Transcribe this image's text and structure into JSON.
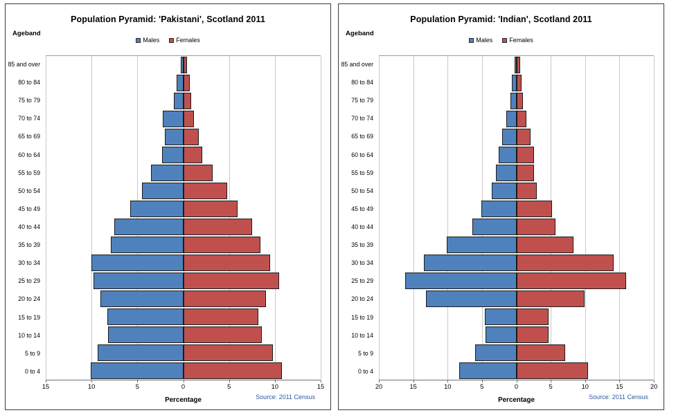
{
  "chart_data": [
    {
      "type": "bar",
      "variant": "population-pyramid",
      "title": "Population Pyramid: 'Pakistani', Scotland 2011",
      "ageband_label": "Ageband",
      "xlabel": "Percentage",
      "source": "Source: 2011 Census",
      "grid": true,
      "legend_position": "top",
      "axis_max": 15,
      "x_ticks": [
        "15",
        "10",
        "5",
        "0",
        "5",
        "10",
        "15"
      ],
      "categories_top_to_bottom": [
        "85 and over",
        "80 to 84",
        "75 to 79",
        "70 to 74",
        "65 to 69",
        "60 to 64",
        "55 to 59",
        "50 to 54",
        "45 to 49",
        "40 to 44",
        "35 to 39",
        "30 to 34",
        "25 to 29",
        "20 to 24",
        "15 to 19",
        "10 to 14",
        "5 to 9",
        "0 to 4"
      ],
      "series": [
        {
          "name": "Males",
          "color": "#4f81bd",
          "side": "left",
          "values": [
            0.3,
            0.7,
            1.0,
            2.2,
            2.0,
            2.3,
            3.5,
            4.5,
            5.8,
            7.5,
            7.9,
            10.0,
            9.8,
            9.0,
            8.3,
            8.2,
            9.3,
            10.1
          ]
        },
        {
          "name": "Females",
          "color": "#c0504d",
          "side": "right",
          "values": [
            0.4,
            0.7,
            0.9,
            1.2,
            1.7,
            2.1,
            3.2,
            4.8,
            5.9,
            7.5,
            8.4,
            9.5,
            10.5,
            9.0,
            8.2,
            8.6,
            9.8,
            10.8
          ]
        }
      ]
    },
    {
      "type": "bar",
      "variant": "population-pyramid",
      "title": "Population Pyramid: 'Indian', Scotland 2011",
      "ageband_label": "Ageband",
      "xlabel": "Percentage",
      "source": "Source: 2011 Census",
      "grid": true,
      "legend_position": "top",
      "axis_max": 20,
      "x_ticks": [
        "20",
        "15",
        "10",
        "5",
        "0",
        "5",
        "10",
        "15",
        "20"
      ],
      "categories_top_to_bottom": [
        "85 and over",
        "80 to 84",
        "75 to 79",
        "70 to 74",
        "65 to 69",
        "60 to 64",
        "55 to 59",
        "50 to 54",
        "45 to 49",
        "40 to 44",
        "35 to 39",
        "30 to 34",
        "25 to 29",
        "20 to 24",
        "15 to 19",
        "10 to 14",
        "5 to 9",
        "0 to 4"
      ],
      "series": [
        {
          "name": "Males",
          "color": "#4f81bd",
          "side": "left",
          "values": [
            0.3,
            0.7,
            0.9,
            1.5,
            2.1,
            2.6,
            3.0,
            3.6,
            5.1,
            6.4,
            10.1,
            13.5,
            16.2,
            13.2,
            4.6,
            4.5,
            6.0,
            8.3
          ]
        },
        {
          "name": "Females",
          "color": "#c0504d",
          "side": "right",
          "values": [
            0.6,
            0.8,
            1.0,
            1.5,
            2.1,
            2.6,
            2.6,
            3.0,
            5.2,
            5.7,
            8.3,
            14.2,
            16.0,
            9.9,
            4.7,
            4.7,
            7.1,
            10.4
          ]
        }
      ]
    }
  ]
}
